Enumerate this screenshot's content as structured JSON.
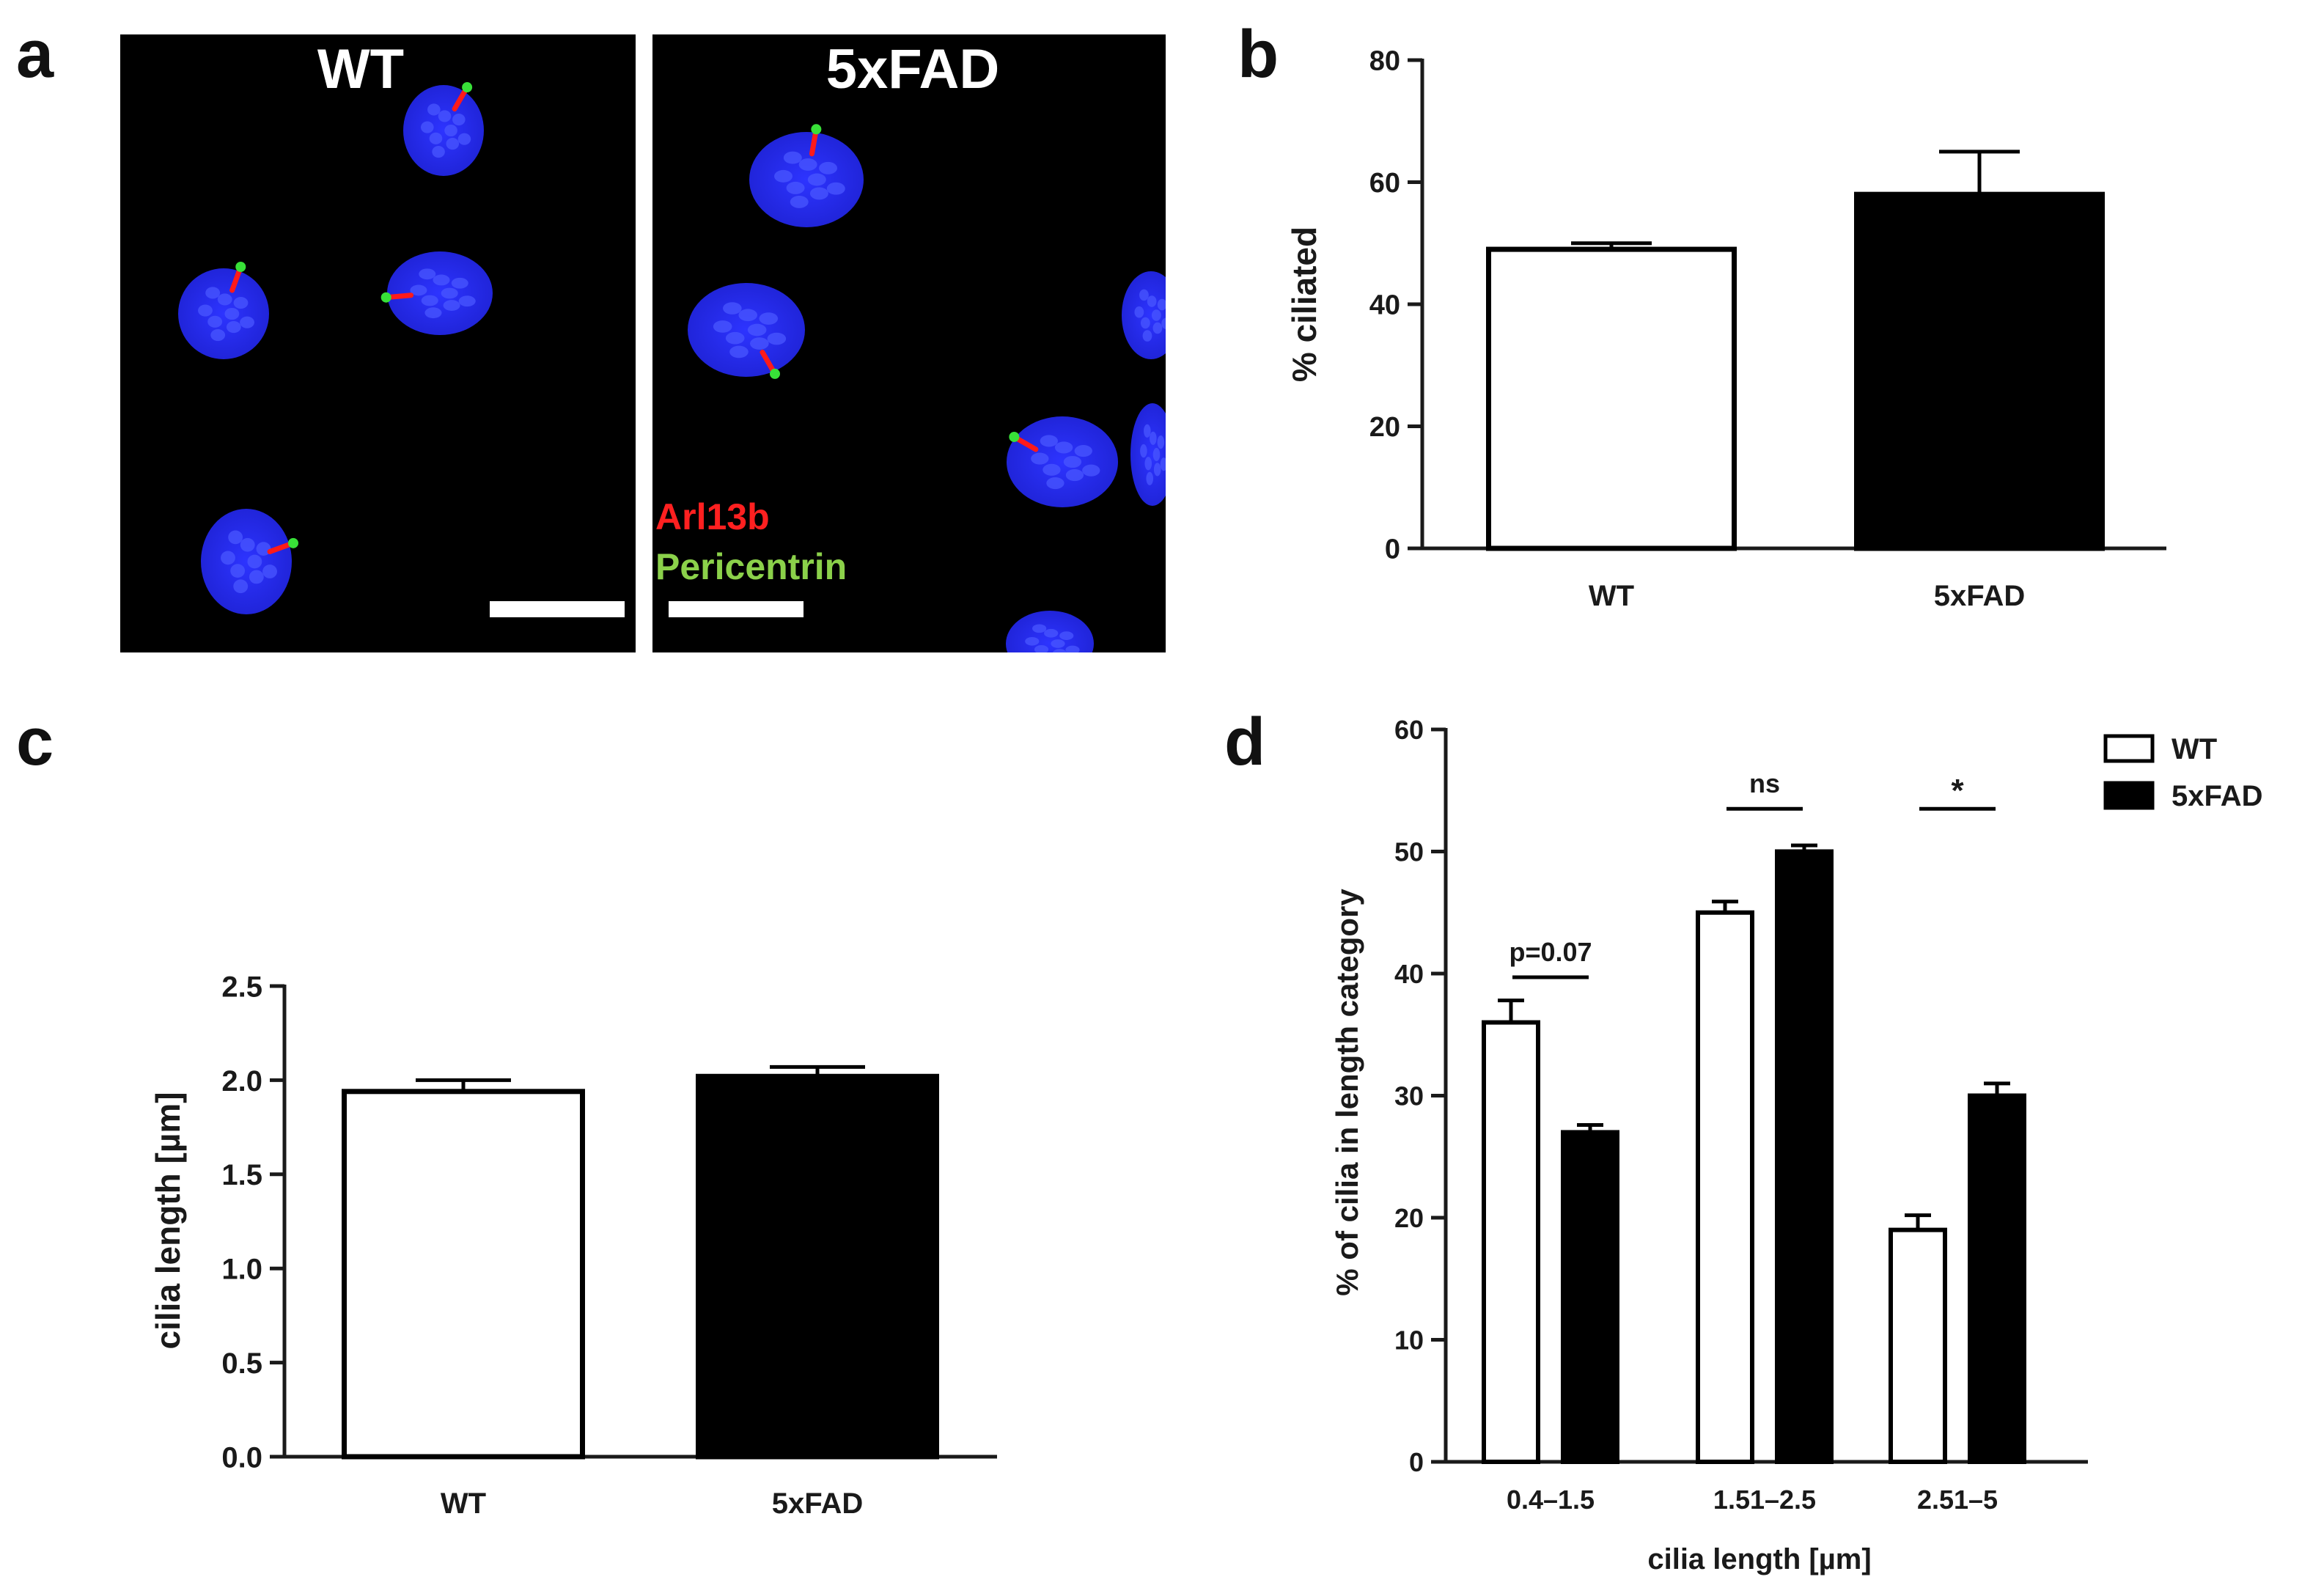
{
  "panel_labels": {
    "a": "a",
    "b": "b",
    "c": "c",
    "d": "d"
  },
  "panel_a": {
    "left_title": "WT",
    "right_title": "5xFAD",
    "legend_red": "Arl13b",
    "legend_green": "Pericentrin",
    "colors": {
      "nucleus": "#1f23d6",
      "cilium": "#ff1a1a",
      "centrosome": "#38e038",
      "legend_red": "#ff2020",
      "legend_green": "#8bd14a"
    }
  },
  "chart_data": [
    {
      "id": "b",
      "type": "bar",
      "categories": [
        "WT",
        "5xFAD"
      ],
      "values": [
        49,
        58
      ],
      "errors": [
        1,
        7
      ],
      "fills": [
        "#ffffff",
        "#000000"
      ],
      "ylabel": "% ciliated",
      "ylim": [
        0,
        80
      ],
      "yticks": [
        "0",
        "20",
        "40",
        "60",
        "80"
      ],
      "grid": false
    },
    {
      "id": "c",
      "type": "bar",
      "categories": [
        "WT",
        "5xFAD"
      ],
      "values": [
        1.94,
        2.02
      ],
      "errors": [
        0.06,
        0.05
      ],
      "fills": [
        "#ffffff",
        "#000000"
      ],
      "ylabel": "cilia length [µm]",
      "ylim": [
        0,
        2.5
      ],
      "yticks": [
        "0.0",
        "0.5",
        "1.0",
        "1.5",
        "2.0",
        "2.5"
      ],
      "grid": false
    },
    {
      "id": "d",
      "type": "bar",
      "categories": [
        "0.4–1.5",
        "1.51–2.5",
        "2.51–5"
      ],
      "series": [
        {
          "name": "WT",
          "values": [
            36,
            45,
            19
          ],
          "errors": [
            1.8,
            0.9,
            1.2
          ],
          "fill": "#ffffff"
        },
        {
          "name": "5xFAD",
          "values": [
            27,
            50,
            30
          ],
          "errors": [
            0.6,
            0.5,
            1.0
          ],
          "fill": "#000000"
        }
      ],
      "xlabel": "cilia length [µm]",
      "ylabel": "% of cilia in length category",
      "ylim": [
        0,
        60
      ],
      "yticks": [
        "0",
        "10",
        "20",
        "30",
        "40",
        "50",
        "60"
      ],
      "annotations": [
        "p=0.07",
        "ns",
        "*"
      ],
      "legend_position": "top-right",
      "grid": false
    }
  ]
}
